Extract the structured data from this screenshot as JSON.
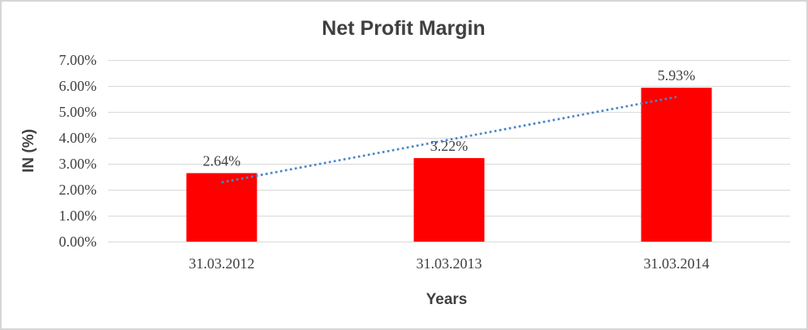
{
  "chart_data": {
    "type": "bar",
    "title": "Net Profit Margin",
    "xlabel": "Years",
    "ylabel": "IN (%)",
    "categories": [
      "31.03.2012",
      "31.03.2013",
      "31.03.2014"
    ],
    "values": [
      2.64,
      3.22,
      5.93
    ],
    "data_labels": [
      "2.64%",
      "3.22%",
      "5.93%"
    ],
    "ylim": [
      0,
      7
    ],
    "ytick_step": 1,
    "ytick_labels": [
      "0.00%",
      "1.00%",
      "2.00%",
      "3.00%",
      "4.00%",
      "5.00%",
      "6.00%",
      "7.00%"
    ],
    "grid": true,
    "legend_position": "none",
    "bar_color": "#FF0000",
    "trendline": {
      "type": "linear",
      "style": "dotted",
      "color": "#4A86C8"
    },
    "colors": {
      "grid": "#D9D9D9",
      "text": "#404040",
      "background": "#FFFFFF",
      "frame_border": "#D5D5D5"
    }
  }
}
